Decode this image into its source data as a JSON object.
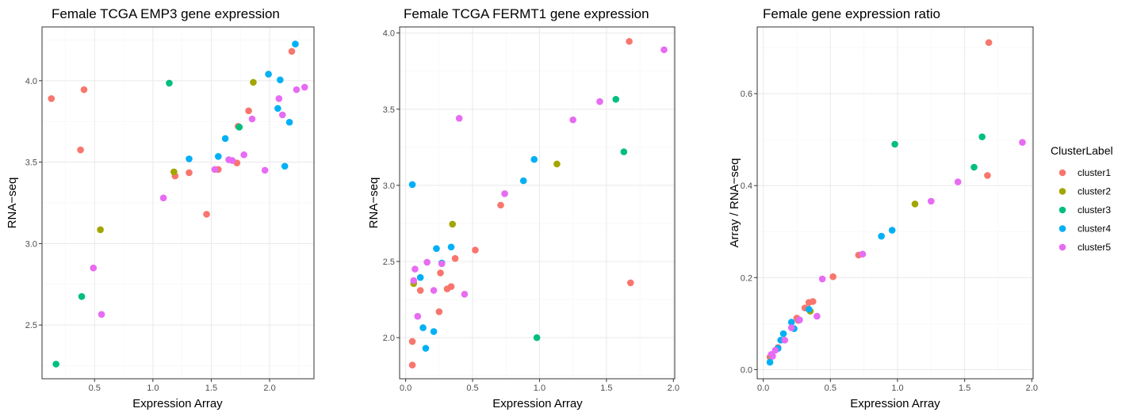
{
  "colors": {
    "cluster1": "#F8766D",
    "cluster2": "#A3A500",
    "cluster3": "#00BF7D",
    "cluster4": "#00B0F6",
    "cluster5": "#E76BF3"
  },
  "legend": {
    "title": "ClusterLabel",
    "items": [
      "cluster1",
      "cluster2",
      "cluster3",
      "cluster4",
      "cluster5"
    ]
  },
  "chart_data": [
    {
      "type": "scatter",
      "title": "Female TCGA EMP3 gene expression",
      "xlabel": "Expression Array",
      "ylabel": "RNA−seq",
      "xlim": [
        0.05,
        2.38
      ],
      "ylim": [
        2.17,
        4.33
      ],
      "xticks": [
        0.5,
        1.0,
        1.5,
        2.0
      ],
      "xtick_labels": [
        "0.5",
        "1.0",
        "1.5",
        "2.0"
      ],
      "yticks": [
        2.5,
        3.0,
        3.5,
        4.0
      ],
      "ytick_labels": [
        "2.5",
        "3.0",
        "3.5",
        "4.0"
      ],
      "grid": true,
      "points": [
        {
          "x": 0.13,
          "y": 3.89,
          "cluster": "cluster1"
        },
        {
          "x": 0.38,
          "y": 3.575,
          "cluster": "cluster1"
        },
        {
          "x": 0.41,
          "y": 3.945,
          "cluster": "cluster1"
        },
        {
          "x": 1.19,
          "y": 3.415,
          "cluster": "cluster1"
        },
        {
          "x": 1.31,
          "y": 3.435,
          "cluster": "cluster1"
        },
        {
          "x": 1.46,
          "y": 3.18,
          "cluster": "cluster1"
        },
        {
          "x": 1.56,
          "y": 3.455,
          "cluster": "cluster1"
        },
        {
          "x": 1.72,
          "y": 3.495,
          "cluster": "cluster1"
        },
        {
          "x": 1.73,
          "y": 3.72,
          "cluster": "cluster1"
        },
        {
          "x": 1.82,
          "y": 3.815,
          "cluster": "cluster1"
        },
        {
          "x": 2.19,
          "y": 4.18,
          "cluster": "cluster1"
        },
        {
          "x": 0.55,
          "y": 3.085,
          "cluster": "cluster2"
        },
        {
          "x": 1.18,
          "y": 3.44,
          "cluster": "cluster2"
        },
        {
          "x": 1.86,
          "y": 3.99,
          "cluster": "cluster2"
        },
        {
          "x": 0.17,
          "y": 2.26,
          "cluster": "cluster3"
        },
        {
          "x": 0.39,
          "y": 2.675,
          "cluster": "cluster3"
        },
        {
          "x": 1.14,
          "y": 3.985,
          "cluster": "cluster3"
        },
        {
          "x": 1.74,
          "y": 3.715,
          "cluster": "cluster3"
        },
        {
          "x": 1.31,
          "y": 3.52,
          "cluster": "cluster4"
        },
        {
          "x": 1.56,
          "y": 3.535,
          "cluster": "cluster4"
        },
        {
          "x": 1.62,
          "y": 3.645,
          "cluster": "cluster4"
        },
        {
          "x": 1.99,
          "y": 4.04,
          "cluster": "cluster4"
        },
        {
          "x": 2.07,
          "y": 3.83,
          "cluster": "cluster4"
        },
        {
          "x": 2.09,
          "y": 4.005,
          "cluster": "cluster4"
        },
        {
          "x": 2.13,
          "y": 3.475,
          "cluster": "cluster4"
        },
        {
          "x": 2.17,
          "y": 3.745,
          "cluster": "cluster4"
        },
        {
          "x": 2.22,
          "y": 4.225,
          "cluster": "cluster4"
        },
        {
          "x": 0.49,
          "y": 2.85,
          "cluster": "cluster5"
        },
        {
          "x": 0.56,
          "y": 2.565,
          "cluster": "cluster5"
        },
        {
          "x": 1.09,
          "y": 3.28,
          "cluster": "cluster5"
        },
        {
          "x": 1.53,
          "y": 3.455,
          "cluster": "cluster5"
        },
        {
          "x": 1.65,
          "y": 3.515,
          "cluster": "cluster5"
        },
        {
          "x": 1.68,
          "y": 3.51,
          "cluster": "cluster5"
        },
        {
          "x": 1.78,
          "y": 3.545,
          "cluster": "cluster5"
        },
        {
          "x": 1.85,
          "y": 3.765,
          "cluster": "cluster5"
        },
        {
          "x": 1.96,
          "y": 3.45,
          "cluster": "cluster5"
        },
        {
          "x": 2.08,
          "y": 3.89,
          "cluster": "cluster5"
        },
        {
          "x": 2.11,
          "y": 3.79,
          "cluster": "cluster5"
        },
        {
          "x": 2.23,
          "y": 3.945,
          "cluster": "cluster5"
        },
        {
          "x": 2.3,
          "y": 3.96,
          "cluster": "cluster5"
        }
      ]
    },
    {
      "type": "scatter",
      "title": "Female TCGA FERMT1 gene expression",
      "xlabel": "Expression Array",
      "ylabel": "RNA−seq",
      "xlim": [
        -0.045,
        2.01
      ],
      "ylim": [
        1.73,
        4.04
      ],
      "xticks": [
        0.0,
        0.5,
        1.0,
        1.5,
        2.0
      ],
      "xtick_labels": [
        "0.0",
        "0.5",
        "1.0",
        "1.5",
        "2.0"
      ],
      "yticks": [
        2.0,
        2.5,
        3.0,
        3.5,
        4.0
      ],
      "ytick_labels": [
        "2.0",
        "2.5",
        "3.0",
        "3.5",
        "4.0"
      ],
      "grid": true,
      "points": [
        {
          "x": 0.05,
          "y": 1.82,
          "cluster": "cluster1"
        },
        {
          "x": 0.05,
          "y": 1.975,
          "cluster": "cluster1"
        },
        {
          "x": 0.11,
          "y": 2.31,
          "cluster": "cluster1"
        },
        {
          "x": 0.25,
          "y": 2.17,
          "cluster": "cluster1"
        },
        {
          "x": 0.26,
          "y": 2.425,
          "cluster": "cluster1"
        },
        {
          "x": 0.31,
          "y": 2.32,
          "cluster": "cluster1"
        },
        {
          "x": 0.34,
          "y": 2.335,
          "cluster": "cluster1"
        },
        {
          "x": 0.37,
          "y": 2.52,
          "cluster": "cluster1"
        },
        {
          "x": 0.52,
          "y": 2.575,
          "cluster": "cluster1"
        },
        {
          "x": 0.71,
          "y": 2.87,
          "cluster": "cluster1"
        },
        {
          "x": 1.67,
          "y": 3.945,
          "cluster": "cluster1"
        },
        {
          "x": 1.68,
          "y": 2.36,
          "cluster": "cluster1"
        },
        {
          "x": 0.06,
          "y": 2.355,
          "cluster": "cluster2"
        },
        {
          "x": 0.35,
          "y": 2.745,
          "cluster": "cluster2"
        },
        {
          "x": 1.13,
          "y": 3.14,
          "cluster": "cluster2"
        },
        {
          "x": 0.98,
          "y": 2.0,
          "cluster": "cluster3"
        },
        {
          "x": 1.57,
          "y": 3.565,
          "cluster": "cluster3"
        },
        {
          "x": 1.63,
          "y": 3.22,
          "cluster": "cluster3"
        },
        {
          "x": 0.05,
          "y": 3.005,
          "cluster": "cluster4"
        },
        {
          "x": 0.11,
          "y": 2.395,
          "cluster": "cluster4"
        },
        {
          "x": 0.13,
          "y": 2.065,
          "cluster": "cluster4"
        },
        {
          "x": 0.15,
          "y": 1.93,
          "cluster": "cluster4"
        },
        {
          "x": 0.21,
          "y": 2.04,
          "cluster": "cluster4"
        },
        {
          "x": 0.23,
          "y": 2.585,
          "cluster": "cluster4"
        },
        {
          "x": 0.27,
          "y": 2.49,
          "cluster": "cluster4"
        },
        {
          "x": 0.34,
          "y": 2.595,
          "cluster": "cluster4"
        },
        {
          "x": 0.88,
          "y": 3.03,
          "cluster": "cluster4"
        },
        {
          "x": 0.96,
          "y": 3.17,
          "cluster": "cluster4"
        },
        {
          "x": 0.06,
          "y": 2.375,
          "cluster": "cluster5"
        },
        {
          "x": 0.07,
          "y": 2.45,
          "cluster": "cluster5"
        },
        {
          "x": 0.09,
          "y": 2.14,
          "cluster": "cluster5"
        },
        {
          "x": 0.16,
          "y": 2.495,
          "cluster": "cluster5"
        },
        {
          "x": 0.21,
          "y": 2.31,
          "cluster": "cluster5"
        },
        {
          "x": 0.27,
          "y": 2.485,
          "cluster": "cluster5"
        },
        {
          "x": 0.4,
          "y": 3.44,
          "cluster": "cluster5"
        },
        {
          "x": 0.44,
          "y": 2.285,
          "cluster": "cluster5"
        },
        {
          "x": 0.74,
          "y": 2.945,
          "cluster": "cluster5"
        },
        {
          "x": 1.25,
          "y": 3.43,
          "cluster": "cluster5"
        },
        {
          "x": 1.45,
          "y": 3.55,
          "cluster": "cluster5"
        },
        {
          "x": 1.93,
          "y": 3.89,
          "cluster": "cluster5"
        }
      ]
    },
    {
      "type": "scatter",
      "title": "Female gene expression ratio",
      "xlabel": "Expression Array",
      "ylabel": "Array / RNA−seq",
      "xlim": [
        -0.045,
        2.01
      ],
      "ylim": [
        -0.02,
        0.745
      ],
      "xticks": [
        0.0,
        0.5,
        1.0,
        1.5,
        2.0
      ],
      "xtick_labels": [
        "0.0",
        "0.5",
        "1.0",
        "1.5",
        "2.0"
      ],
      "yticks": [
        0.0,
        0.2,
        0.4,
        0.6
      ],
      "ytick_labels": [
        "0.0",
        "0.2",
        "0.4",
        "0.6"
      ],
      "grid": true,
      "points": [
        {
          "x": 0.05,
          "y": 0.027,
          "cluster": "cluster1"
        },
        {
          "x": 0.11,
          "y": 0.048,
          "cluster": "cluster1"
        },
        {
          "x": 0.25,
          "y": 0.112,
          "cluster": "cluster1"
        },
        {
          "x": 0.26,
          "y": 0.107,
          "cluster": "cluster1"
        },
        {
          "x": 0.31,
          "y": 0.134,
          "cluster": "cluster1"
        },
        {
          "x": 0.34,
          "y": 0.146,
          "cluster": "cluster1"
        },
        {
          "x": 0.37,
          "y": 0.148,
          "cluster": "cluster1"
        },
        {
          "x": 0.52,
          "y": 0.202,
          "cluster": "cluster1"
        },
        {
          "x": 0.71,
          "y": 0.249,
          "cluster": "cluster1"
        },
        {
          "x": 1.67,
          "y": 0.422,
          "cluster": "cluster1"
        },
        {
          "x": 1.68,
          "y": 0.711,
          "cluster": "cluster1"
        },
        {
          "x": 0.06,
          "y": 0.03,
          "cluster": "cluster2"
        },
        {
          "x": 0.35,
          "y": 0.127,
          "cluster": "cluster2"
        },
        {
          "x": 1.13,
          "y": 0.36,
          "cluster": "cluster2"
        },
        {
          "x": 0.98,
          "y": 0.49,
          "cluster": "cluster3"
        },
        {
          "x": 1.57,
          "y": 0.44,
          "cluster": "cluster3"
        },
        {
          "x": 1.63,
          "y": 0.506,
          "cluster": "cluster3"
        },
        {
          "x": 0.05,
          "y": 0.016,
          "cluster": "cluster4"
        },
        {
          "x": 0.11,
          "y": 0.046,
          "cluster": "cluster4"
        },
        {
          "x": 0.13,
          "y": 0.064,
          "cluster": "cluster4"
        },
        {
          "x": 0.15,
          "y": 0.078,
          "cluster": "cluster4"
        },
        {
          "x": 0.21,
          "y": 0.103,
          "cluster": "cluster4"
        },
        {
          "x": 0.23,
          "y": 0.089,
          "cluster": "cluster4"
        },
        {
          "x": 0.27,
          "y": 0.108,
          "cluster": "cluster4"
        },
        {
          "x": 0.34,
          "y": 0.131,
          "cluster": "cluster4"
        },
        {
          "x": 0.88,
          "y": 0.29,
          "cluster": "cluster4"
        },
        {
          "x": 0.96,
          "y": 0.303,
          "cluster": "cluster4"
        },
        {
          "x": 0.06,
          "y": 0.033,
          "cluster": "cluster5"
        },
        {
          "x": 0.07,
          "y": 0.029,
          "cluster": "cluster5"
        },
        {
          "x": 0.09,
          "y": 0.042,
          "cluster": "cluster5"
        },
        {
          "x": 0.16,
          "y": 0.064,
          "cluster": "cluster5"
        },
        {
          "x": 0.21,
          "y": 0.091,
          "cluster": "cluster5"
        },
        {
          "x": 0.27,
          "y": 0.108,
          "cluster": "cluster5"
        },
        {
          "x": 0.4,
          "y": 0.116,
          "cluster": "cluster5"
        },
        {
          "x": 0.44,
          "y": 0.197,
          "cluster": "cluster5"
        },
        {
          "x": 0.74,
          "y": 0.251,
          "cluster": "cluster5"
        },
        {
          "x": 1.25,
          "y": 0.366,
          "cluster": "cluster5"
        },
        {
          "x": 1.45,
          "y": 0.408,
          "cluster": "cluster5"
        },
        {
          "x": 1.93,
          "y": 0.494,
          "cluster": "cluster5"
        }
      ]
    }
  ]
}
